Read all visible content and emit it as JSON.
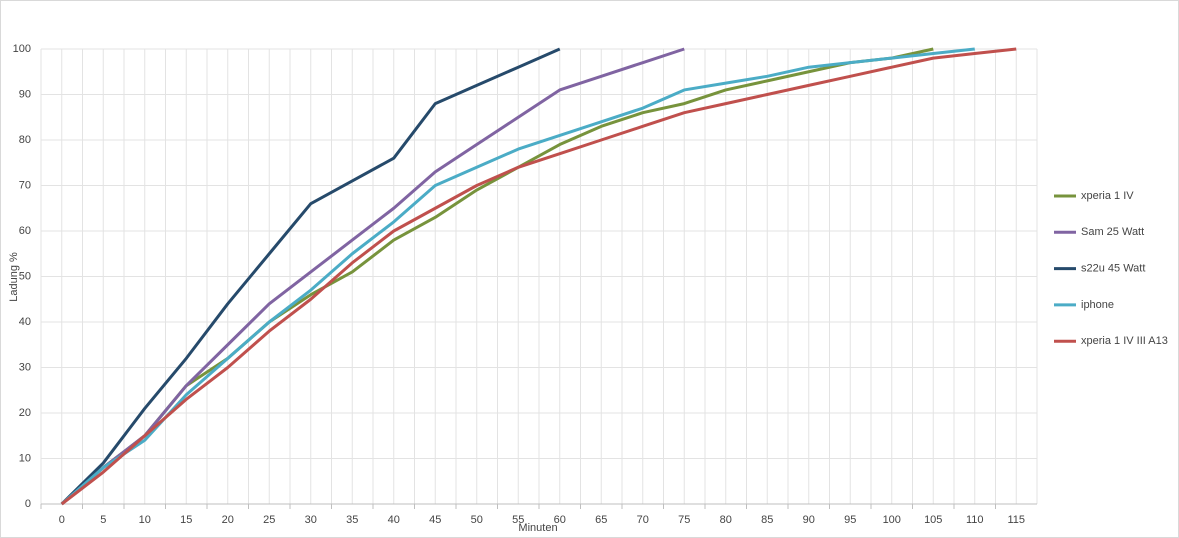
{
  "chart_data": {
    "type": "line",
    "x_label": "Minuten",
    "y_label": "Ladung %",
    "categories": [
      "0",
      "5",
      "10",
      "15",
      "20",
      "25",
      "30",
      "35",
      "40",
      "45",
      "50",
      "55",
      "60",
      "65",
      "70",
      "75",
      "80",
      "85",
      "90",
      "95",
      "100",
      "105",
      "110",
      "115"
    ],
    "series": [
      {
        "name": "xperia 1 IV",
        "color": "#77933c",
        "values": [
          0,
          8,
          15,
          26,
          32,
          40,
          46,
          51,
          58,
          63,
          69,
          74,
          79,
          83,
          86,
          88,
          91,
          93,
          95,
          97,
          98,
          100,
          null,
          null
        ]
      },
      {
        "name": "Sam 25 Watt",
        "color": "#8064a2",
        "values": [
          0,
          8,
          15,
          26,
          35,
          44,
          51,
          58,
          65,
          73,
          79,
          85,
          91,
          94,
          97,
          100,
          null,
          null,
          null,
          null,
          null,
          null,
          null,
          null
        ]
      },
      {
        "name": "s22u 45 Watt",
        "color": "#264a6b",
        "values": [
          0,
          9,
          21,
          32,
          44,
          55,
          66,
          71,
          76,
          88,
          92,
          96,
          100,
          null,
          null,
          null,
          null,
          null,
          null,
          null,
          null,
          null,
          null,
          null
        ]
      },
      {
        "name": "iphone",
        "color": "#4bacc6",
        "values": [
          0,
          8,
          14,
          24,
          32,
          40,
          47,
          55,
          62,
          70,
          74,
          78,
          81,
          84,
          87,
          91,
          92.5,
          94,
          96,
          97,
          98,
          99,
          100,
          null
        ]
      },
      {
        "name": "xperia 1 IV III A13",
        "color": "#c0504d",
        "values": [
          0,
          7,
          15,
          23,
          30,
          38,
          45,
          53,
          60,
          65,
          70,
          74,
          77,
          80,
          83,
          86,
          88,
          90,
          92,
          94,
          96,
          98,
          99,
          100
        ]
      }
    ],
    "ylim": [
      0,
      100
    ],
    "yticks": [
      0,
      10,
      20,
      30,
      40,
      50,
      60,
      70,
      80,
      90,
      100
    ],
    "grid": true,
    "legend": "right"
  }
}
